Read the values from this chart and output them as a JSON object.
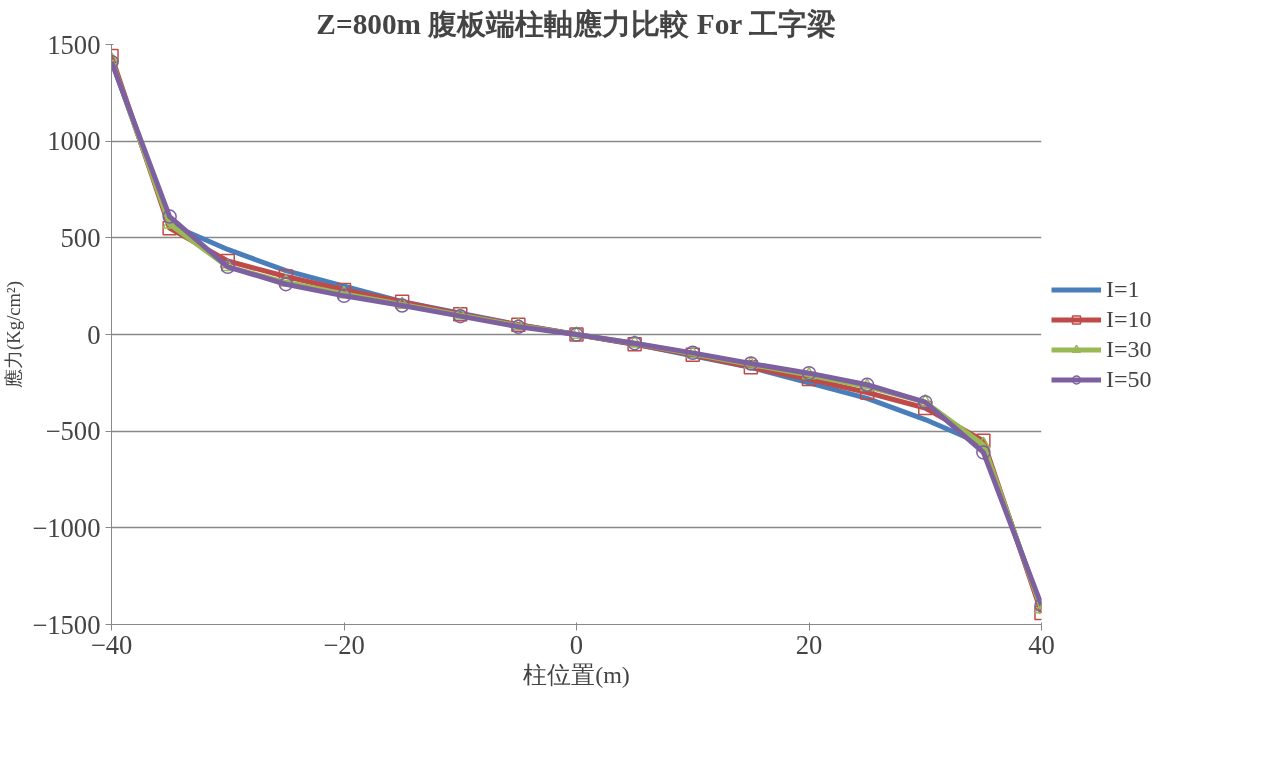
{
  "chart_data": {
    "type": "line",
    "title": "Z=800m 腹板端柱軸應力比較 For 工字梁",
    "xlabel": "柱位置(m)",
    "ylabel": "應力(Kg/cm²)",
    "x": [
      -40,
      -35,
      -30,
      -25,
      -20,
      -15,
      -10,
      -5,
      0,
      5,
      10,
      15,
      20,
      25,
      30,
      35,
      40
    ],
    "series": [
      {
        "name": "I=1",
        "color": "#4a7ebb",
        "marker": "none",
        "values": [
          1420,
          570,
          440,
          330,
          250,
          170,
          110,
          50,
          0,
          -50,
          -110,
          -170,
          -250,
          -330,
          -440,
          -570,
          -1420
        ]
      },
      {
        "name": "I=10",
        "color": "#be4b48",
        "marker": "square",
        "values": [
          1440,
          550,
          380,
          300,
          230,
          170,
          105,
          50,
          0,
          -50,
          -105,
          -170,
          -230,
          -300,
          -380,
          -550,
          -1440
        ]
      },
      {
        "name": "I=30",
        "color": "#98b954",
        "marker": "triangle",
        "values": [
          1420,
          570,
          350,
          270,
          210,
          155,
          100,
          45,
          0,
          -45,
          -100,
          -155,
          -210,
          -270,
          -350,
          -570,
          -1420
        ]
      },
      {
        "name": "I=50",
        "color": "#7d60a0",
        "marker": "circle",
        "values": [
          1410,
          610,
          350,
          260,
          200,
          150,
          95,
          40,
          0,
          -45,
          -95,
          -150,
          -200,
          -260,
          -350,
          -610,
          -1400
        ]
      }
    ],
    "xlim": [
      -40,
      40
    ],
    "xticks": [
      -40,
      -20,
      0,
      20,
      40
    ],
    "ylim": [
      -1500,
      1500
    ],
    "yticks": [
      -1500,
      -1000,
      -500,
      0,
      500,
      1000,
      1500
    ],
    "grid": "y",
    "legend": "right",
    "line_style": "solid"
  }
}
